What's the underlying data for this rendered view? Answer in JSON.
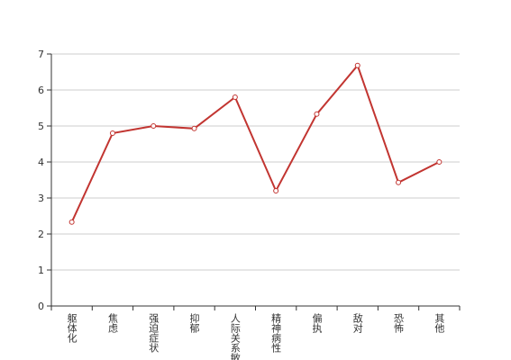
{
  "chart_data": {
    "type": "line",
    "categories": [
      "躯体化",
      "焦虑",
      "强迫症状",
      "抑郁",
      "人际关系敏感",
      "精神病性",
      "偏执",
      "敌对",
      "恐怖",
      "其他"
    ],
    "values": [
      2.33,
      4.8,
      5.0,
      4.93,
      5.8,
      3.2,
      5.33,
      6.68,
      3.43,
      4.0
    ],
    "color": "#c23531",
    "ylim": [
      0,
      7
    ],
    "yticks": [
      0,
      1,
      2,
      3,
      4,
      5,
      6,
      7
    ],
    "grid": true
  }
}
